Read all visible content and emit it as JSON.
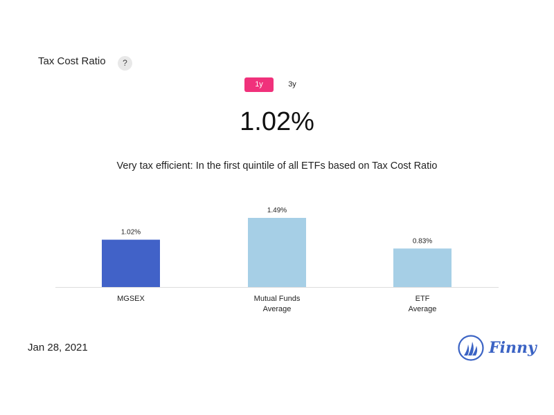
{
  "header": {
    "title": "Tax Cost Ratio",
    "help_label": "?"
  },
  "tabs": [
    {
      "label": "1y",
      "active": true
    },
    {
      "label": "3y",
      "active": false
    }
  ],
  "main_value": "1.02%",
  "description": "Very tax efficient: In the first quintile of all ETFs based on Tax Cost Ratio",
  "date": "Jan 28, 2021",
  "brand": {
    "name": "Finny",
    "logo_icon": "sailboat-icon",
    "color": "#3b63c4"
  },
  "colors": {
    "accent": "#f0317b",
    "primary_bar": "#4162c8",
    "secondary_bar": "#a6cfe6"
  },
  "chart_data": {
    "type": "bar",
    "categories": [
      [
        "MGSEX"
      ],
      [
        "Mutual Funds",
        "Average"
      ],
      [
        "ETF",
        "Average"
      ]
    ],
    "values": [
      1.02,
      1.49,
      0.83
    ],
    "value_labels": [
      "1.02%",
      "1.49%",
      "0.83%"
    ],
    "bar_colors": [
      "#4162c8",
      "#a6cfe6",
      "#a6cfe6"
    ],
    "ylim": [
      0,
      1.49
    ],
    "grid": false,
    "title": "",
    "xlabel": "",
    "ylabel": ""
  }
}
